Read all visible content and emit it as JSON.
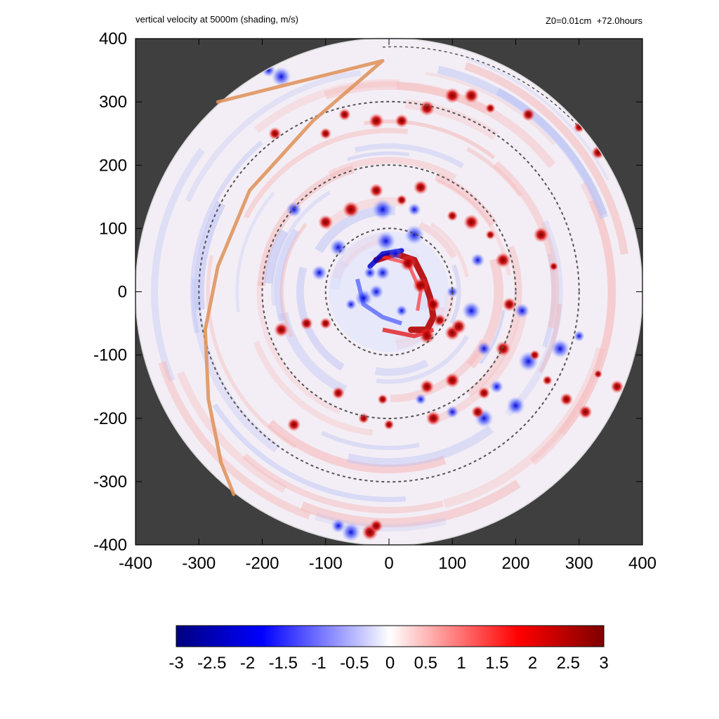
{
  "header": {
    "title_left": "vertical velocity at 5000m (shading, m/s)",
    "title_right": "Z0=0.01cm  +72.0hours"
  },
  "chart_data": {
    "type": "heatmap",
    "title": "vertical velocity at 5000m (shading, m/s)",
    "subtitle": "Z0=0.01cm  +72.0hours",
    "xlim": [
      -400,
      400
    ],
    "ylim": [
      -400,
      400
    ],
    "x_ticks": [
      -400,
      -300,
      -200,
      -100,
      0,
      100,
      200,
      300,
      400
    ],
    "y_ticks": [
      -400,
      -300,
      -200,
      -100,
      0,
      100,
      200,
      300,
      400
    ],
    "x_tick_labels": [
      "-400",
      "-300",
      "-200",
      "-100",
      "0",
      "100",
      "200",
      "300",
      "400"
    ],
    "y_tick_labels": [
      "-400",
      "-300",
      "-200",
      "-100",
      "0",
      "100",
      "200",
      "300",
      "400"
    ],
    "domain_radius": 400,
    "outside_domain_color": "#3f3f3f",
    "range_rings": [
      100,
      200,
      300
    ],
    "range_ring_color": "#555555",
    "colorbar": {
      "min": -3,
      "max": 3,
      "tick_values": [
        -3,
        -2.5,
        -2,
        -1.5,
        -1,
        -0.5,
        0,
        0.5,
        1,
        1.5,
        2,
        2.5,
        3
      ],
      "tick_labels": [
        "-3",
        "-2.5",
        "-2",
        "-1.5",
        "-1",
        "-0.5",
        "0",
        "0.5",
        "1",
        "1.5",
        "2",
        "2.5",
        "3"
      ],
      "colors": [
        "#00007f",
        "#0000ff",
        "#ffffff",
        "#ff0000",
        "#7f0000"
      ]
    },
    "track_line": {
      "color": "#e0955f",
      "points": [
        [
          -270,
          300
        ],
        [
          -10,
          365
        ],
        [
          -120,
          270
        ],
        [
          -220,
          160
        ],
        [
          -270,
          40
        ],
        [
          -290,
          -60
        ],
        [
          -285,
          -170
        ],
        [
          -265,
          -270
        ],
        [
          -245,
          -320
        ]
      ]
    },
    "updraft_cells": [
      [
        30,
        45
      ],
      [
        50,
        10
      ],
      [
        70,
        -20
      ],
      [
        80,
        -45
      ],
      [
        60,
        -70
      ],
      [
        100,
        -65
      ],
      [
        110,
        -55
      ],
      [
        -100,
        110
      ],
      [
        -60,
        130
      ],
      [
        -20,
        160
      ],
      [
        20,
        145
      ],
      [
        50,
        165
      ],
      [
        100,
        120
      ],
      [
        130,
        110
      ],
      [
        160,
        90
      ],
      [
        180,
        50
      ],
      [
        190,
        -20
      ],
      [
        180,
        -90
      ],
      [
        150,
        -160
      ],
      [
        100,
        -140
      ],
      [
        240,
        90
      ],
      [
        260,
        40
      ],
      [
        230,
        -100
      ],
      [
        250,
        -140
      ],
      [
        330,
        -130
      ],
      [
        360,
        -150
      ],
      [
        -20,
        270
      ],
      [
        20,
        270
      ],
      [
        60,
        290
      ],
      [
        100,
        310
      ],
      [
        130,
        310
      ],
      [
        160,
        290
      ],
      [
        220,
        280
      ],
      [
        -70,
        280
      ],
      [
        -100,
        250
      ],
      [
        -180,
        250
      ],
      [
        -170,
        -60
      ],
      [
        -130,
        -50
      ],
      [
        -100,
        -50
      ],
      [
        -80,
        -160
      ],
      [
        -10,
        -170
      ],
      [
        60,
        -150
      ],
      [
        70,
        -200
      ],
      [
        -40,
        -200
      ],
      [
        0,
        -210
      ],
      [
        -150,
        -210
      ],
      [
        140,
        -190
      ],
      [
        -30,
        -380
      ],
      [
        -20,
        -370
      ],
      [
        300,
        260
      ],
      [
        330,
        220
      ],
      [
        280,
        -170
      ],
      [
        310,
        -190
      ]
    ],
    "downdraft_cells": [
      [
        -10,
        30
      ],
      [
        -20,
        0
      ],
      [
        10,
        60
      ],
      [
        -40,
        -10
      ],
      [
        -30,
        30
      ],
      [
        20,
        -30
      ],
      [
        -60,
        -20
      ],
      [
        -5,
        80
      ],
      [
        40,
        90
      ],
      [
        100,
        0
      ],
      [
        130,
        -30
      ],
      [
        150,
        -90
      ],
      [
        210,
        -30
      ],
      [
        220,
        -110
      ],
      [
        270,
        -90
      ],
      [
        300,
        -70
      ],
      [
        -10,
        130
      ],
      [
        40,
        130
      ],
      [
        -80,
        70
      ],
      [
        -110,
        30
      ],
      [
        50,
        -170
      ],
      [
        100,
        -190
      ],
      [
        150,
        -200
      ],
      [
        200,
        -180
      ],
      [
        -190,
        350
      ],
      [
        -170,
        340
      ],
      [
        -60,
        -380
      ],
      [
        -80,
        -370
      ],
      [
        -150,
        130
      ],
      [
        140,
        50
      ],
      [
        170,
        -150
      ]
    ]
  }
}
